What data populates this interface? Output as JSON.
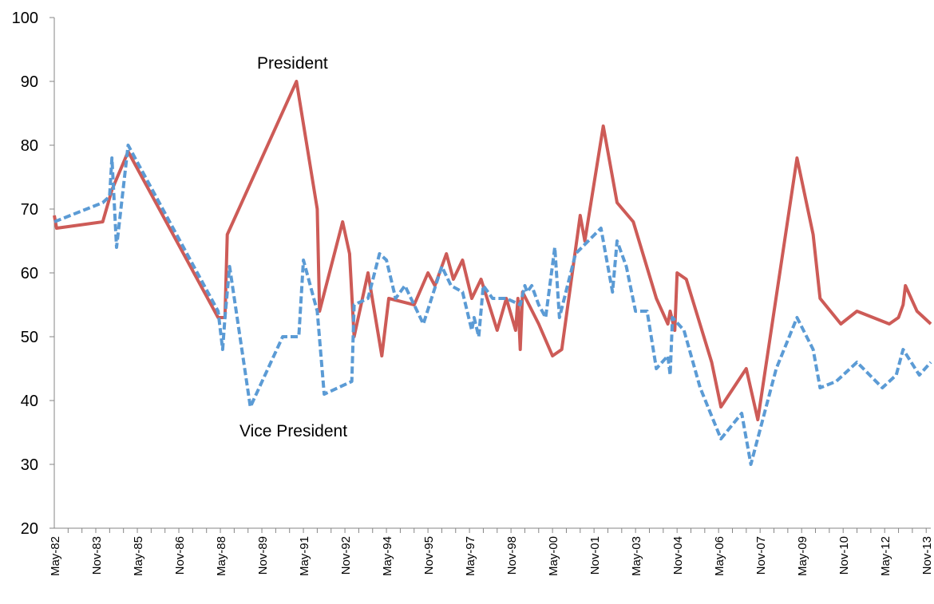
{
  "chart_data": {
    "type": "line",
    "title": "",
    "xlabel": "",
    "ylabel": "",
    "ylim": [
      20,
      100
    ],
    "yticks": [
      20,
      30,
      40,
      50,
      60,
      70,
      80,
      90,
      100
    ],
    "xlim": [
      "1982-05",
      "2014-01"
    ],
    "xticks": [
      "May-82",
      "Nov-83",
      "May-85",
      "Nov-86",
      "May-88",
      "Nov-89",
      "May-91",
      "Nov-92",
      "May-94",
      "Nov-95",
      "May-97",
      "Nov-98",
      "May-00",
      "Nov-01",
      "May-03",
      "Nov-04",
      "May-06",
      "Nov-07",
      "May-09",
      "Nov-10",
      "May-12",
      "Nov-13"
    ],
    "grid": false,
    "legend": "none",
    "series": [
      {
        "name": "President",
        "color": "#cd5b57",
        "dash": "solid",
        "points": [
          [
            "1982-05",
            69
          ],
          [
            "1982-06",
            67
          ],
          [
            "1984-02",
            68
          ],
          [
            "1984-06",
            73
          ],
          [
            "1985-01",
            79
          ],
          [
            "1988-04",
            53
          ],
          [
            "1988-07",
            53
          ],
          [
            "1988-08",
            66
          ],
          [
            "1991-02",
            90
          ],
          [
            "1991-11",
            70
          ],
          [
            "1991-12",
            54
          ],
          [
            "1992-10",
            68
          ],
          [
            "1993-01",
            63
          ],
          [
            "1993-03",
            50
          ],
          [
            "1993-09",
            60
          ],
          [
            "1994-03",
            47
          ],
          [
            "1994-06",
            56
          ],
          [
            "1995-05",
            55
          ],
          [
            "1995-11",
            60
          ],
          [
            "1996-02",
            58
          ],
          [
            "1996-07",
            63
          ],
          [
            "1996-10",
            59
          ],
          [
            "1997-02",
            62
          ],
          [
            "1997-06",
            56
          ],
          [
            "1997-10",
            59
          ],
          [
            "1998-05",
            51
          ],
          [
            "1998-09",
            56
          ],
          [
            "1999-01",
            51
          ],
          [
            "1999-02",
            56
          ],
          [
            "1999-03",
            48
          ],
          [
            "1999-04",
            57
          ],
          [
            "1999-11",
            52
          ],
          [
            "2000-05",
            47
          ],
          [
            "2000-09",
            48
          ],
          [
            "2001-05",
            69
          ],
          [
            "2001-07",
            65
          ],
          [
            "2002-03",
            83
          ],
          [
            "2002-09",
            71
          ],
          [
            "2003-04",
            68
          ],
          [
            "2004-02",
            56
          ],
          [
            "2004-07",
            52
          ],
          [
            "2004-08",
            54
          ],
          [
            "2004-10",
            51
          ],
          [
            "2004-11",
            60
          ],
          [
            "2005-03",
            59
          ],
          [
            "2006-02",
            46
          ],
          [
            "2006-06",
            39
          ],
          [
            "2007-05",
            45
          ],
          [
            "2007-10",
            37
          ],
          [
            "2009-03",
            78
          ],
          [
            "2009-10",
            66
          ],
          [
            "2010-01",
            56
          ],
          [
            "2010-10",
            52
          ],
          [
            "2011-05",
            54
          ],
          [
            "2012-07",
            52
          ],
          [
            "2012-11",
            53
          ],
          [
            "2013-01",
            55
          ],
          [
            "2013-02",
            58
          ],
          [
            "2013-07",
            54
          ],
          [
            "2014-01",
            52
          ]
        ]
      },
      {
        "name": "Vice President",
        "color": "#5b9bd5",
        "dash": "dashed",
        "points": [
          [
            "1982-05",
            68
          ],
          [
            "1984-02",
            71
          ],
          [
            "1984-05",
            72
          ],
          [
            "1984-06",
            78
          ],
          [
            "1984-08",
            64
          ],
          [
            "1985-01",
            80
          ],
          [
            "1988-04",
            54
          ],
          [
            "1988-06",
            48
          ],
          [
            "1988-07",
            53
          ],
          [
            "1988-09",
            61
          ],
          [
            "1989-06",
            39
          ],
          [
            "1990-08",
            50
          ],
          [
            "1991-03",
            50
          ],
          [
            "1991-05",
            62
          ],
          [
            "1991-11",
            54
          ],
          [
            "1992-02",
            41
          ],
          [
            "1993-02",
            43
          ],
          [
            "1993-03",
            55
          ],
          [
            "1993-09",
            56
          ],
          [
            "1994-02",
            63
          ],
          [
            "1994-05",
            62
          ],
          [
            "1994-09",
            56
          ],
          [
            "1995-01",
            58
          ],
          [
            "1995-09",
            52
          ],
          [
            "1996-05",
            61
          ],
          [
            "1996-09",
            58
          ],
          [
            "1997-02",
            57
          ],
          [
            "1997-06",
            51
          ],
          [
            "1997-07",
            53
          ],
          [
            "1997-09",
            50
          ],
          [
            "1997-11",
            58
          ],
          [
            "1998-03",
            56
          ],
          [
            "1998-09",
            56
          ],
          [
            "1999-03",
            55
          ],
          [
            "1999-05",
            58
          ],
          [
            "1999-06",
            57
          ],
          [
            "1999-08",
            58
          ],
          [
            "1999-11",
            55
          ],
          [
            "2000-02",
            53
          ],
          [
            "2000-06",
            64
          ],
          [
            "2000-08",
            53
          ],
          [
            "2001-03",
            63
          ],
          [
            "2002-02",
            67
          ],
          [
            "2002-07",
            57
          ],
          [
            "2002-09",
            65
          ],
          [
            "2003-01",
            61
          ],
          [
            "2003-05",
            54
          ],
          [
            "2003-10",
            54
          ],
          [
            "2004-02",
            45
          ],
          [
            "2004-07",
            47
          ],
          [
            "2004-08",
            44
          ],
          [
            "2004-09",
            53
          ],
          [
            "2005-02",
            51
          ],
          [
            "2005-09",
            42
          ],
          [
            "2006-06",
            34
          ],
          [
            "2007-03",
            38
          ],
          [
            "2007-07",
            30
          ],
          [
            "2008-06",
            45
          ],
          [
            "2009-03",
            53
          ],
          [
            "2009-10",
            48
          ],
          [
            "2010-01",
            42
          ],
          [
            "2010-08",
            43
          ],
          [
            "2011-05",
            46
          ],
          [
            "2012-04",
            42
          ],
          [
            "2012-10",
            44
          ],
          [
            "2013-01",
            48
          ],
          [
            "2013-08",
            44
          ],
          [
            "2014-01",
            46
          ]
        ]
      }
    ],
    "annotations": [
      {
        "text": "President",
        "series": "President"
      },
      {
        "text": "Vice President",
        "series": "Vice President"
      }
    ]
  }
}
